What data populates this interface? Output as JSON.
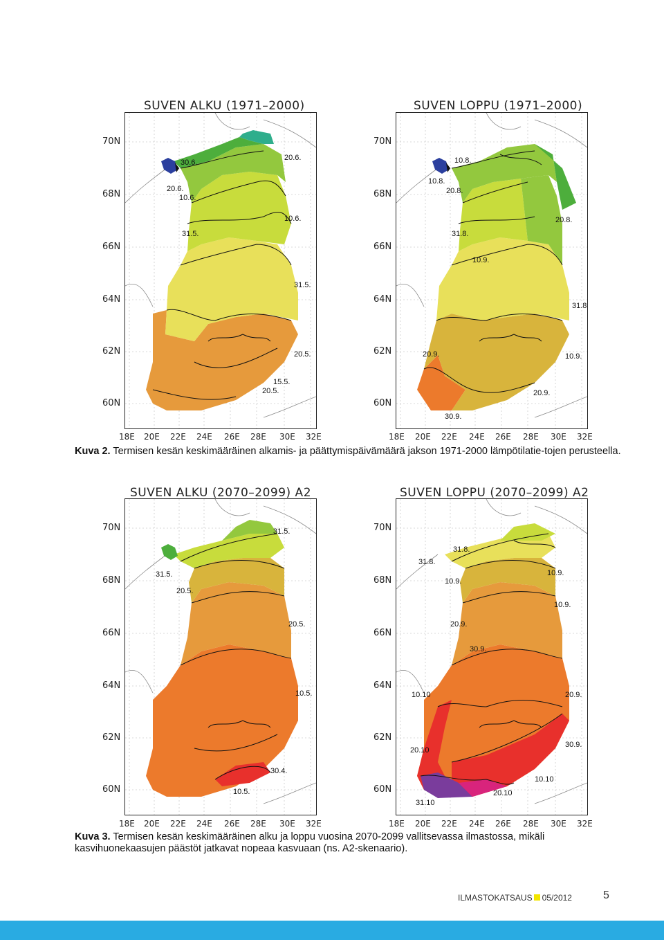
{
  "panels": [
    {
      "id": "p1",
      "title": "SUVEN ALKU (1971–2000)",
      "lat_labels": [
        "70N",
        "68N",
        "66N",
        "64N",
        "62N",
        "60N"
      ],
      "lon_labels": [
        "18E",
        "20E",
        "22E",
        "24E",
        "26E",
        "28E",
        "30E",
        "32E"
      ],
      "contour_labels": [
        "30.6.",
        "20.6.",
        "20.6.",
        "10.6.",
        "10.6.",
        "31.5.",
        "31.5.",
        "20.5.",
        "15.5.",
        "20.5."
      ]
    },
    {
      "id": "p2",
      "title": "SUVEN LOPPU (1971–2000)",
      "lat_labels": [
        "70N",
        "68N",
        "66N",
        "64N",
        "62N",
        "60N"
      ],
      "lon_labels": [
        "18E",
        "20E",
        "22E",
        "24E",
        "26E",
        "28E",
        "30E",
        "32E"
      ],
      "contour_labels": [
        "10.8.",
        "10.8.",
        "20.8.",
        "20.8.",
        "31.8.",
        "10.9.",
        "31.8.",
        "20.9.",
        "10.9.",
        "20.9.",
        "30.9."
      ]
    },
    {
      "id": "p3",
      "title": "SUVEN ALKU (2070–2099) A2",
      "lat_labels": [
        "70N",
        "68N",
        "66N",
        "64N",
        "62N",
        "60N"
      ],
      "lon_labels": [
        "18E",
        "20E",
        "22E",
        "24E",
        "26E",
        "28E",
        "30E",
        "32E"
      ],
      "contour_labels": [
        "31.5.",
        "31.5.",
        "20.5.",
        "20.5.",
        "10.5.",
        "30.4.",
        "10.5."
      ]
    },
    {
      "id": "p4",
      "title": "SUVEN LOPPU (2070–2099) A2",
      "lat_labels": [
        "70N",
        "68N",
        "66N",
        "64N",
        "62N",
        "60N"
      ],
      "lon_labels": [
        "18E",
        "20E",
        "22E",
        "24E",
        "26E",
        "28E",
        "30E",
        "32E"
      ],
      "contour_labels": [
        "31.8.",
        "31.8.",
        "10.9.",
        "10.9.",
        "10.9.",
        "20.9.",
        "30.9.",
        "10.10",
        "20.9.",
        "20.10",
        "30.9.",
        "10.10",
        "20.10",
        "31.10"
      ]
    }
  ],
  "captions": {
    "c2_label": "Kuva 2.",
    "c2_text": " Termisen kesän keskimääräinen alkamis- ja päättymispäivämäärä jakson 1971-2000 lämpötilatie-tojen perusteella.",
    "c3_label": "Kuva 3.",
    "c3_text": " Termisen kesän keskimääräinen alku ja loppu vuosina 2070-2099 vallitsevassa ilmastossa, mikäli kasvihuonekaasujen päästöt jatkavat nopeaa kasvuaan (ns. A2-skenaario)."
  },
  "footer": {
    "publication": "ILMASTOKATSAUS",
    "issue": "05/2012",
    "page_number": "5",
    "accent_color": "#f2e500",
    "bar_color": "#29abe2"
  },
  "colors": {
    "blue": "#2b3f9e",
    "teal": "#2fae8c",
    "green": "#4dae3c",
    "lightgreen": "#93c83e",
    "yellowgreen": "#c8dc3c",
    "yellow": "#e8e05a",
    "ochre": "#d8b43c",
    "orange": "#e69a3c",
    "darkorange": "#ec7a2c",
    "red": "#e8302c",
    "magenta": "#d8247c",
    "purple": "#7a3c9c"
  }
}
